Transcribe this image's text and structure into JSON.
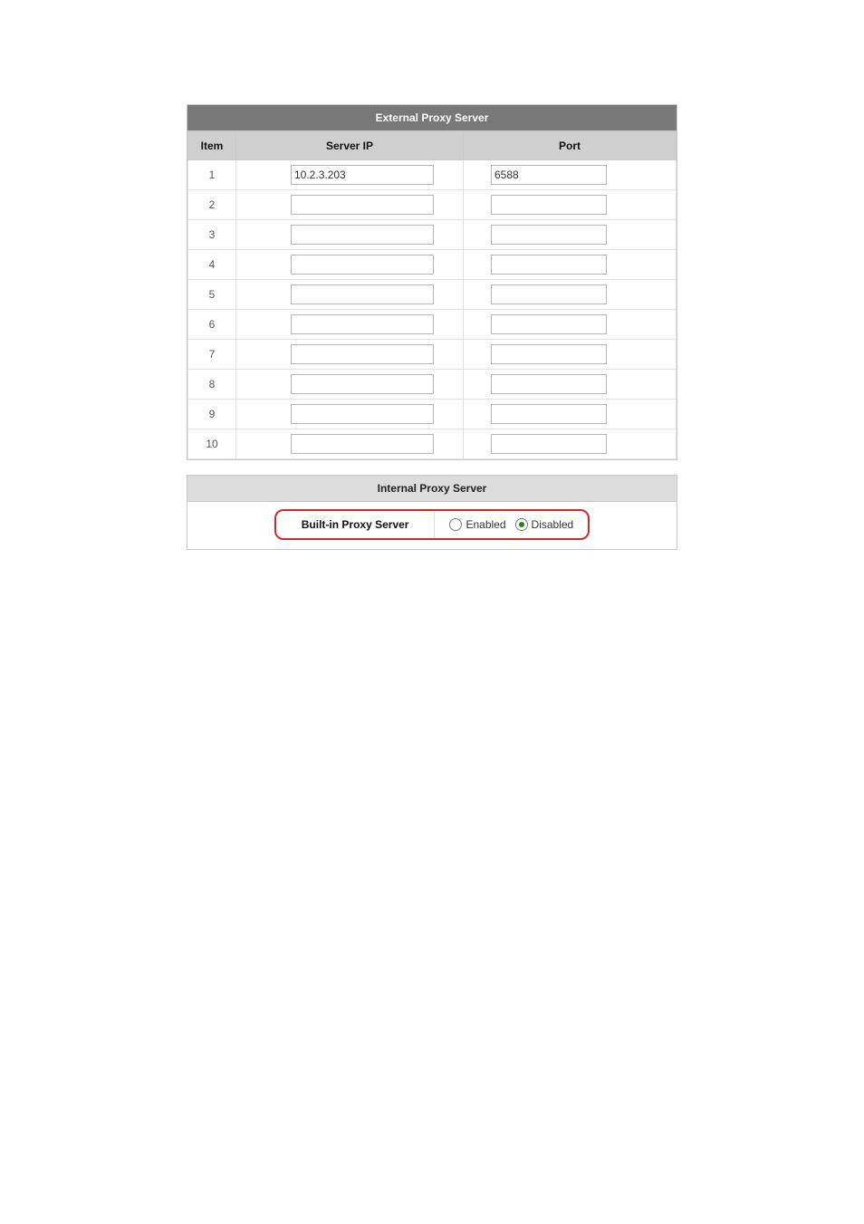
{
  "external": {
    "title": "External Proxy Server",
    "columns": {
      "item": "Item",
      "ip": "Server IP",
      "port": "Port"
    },
    "rows": [
      {
        "n": "1",
        "ip": "10.2.3.203",
        "port": "6588"
      },
      {
        "n": "2",
        "ip": "",
        "port": ""
      },
      {
        "n": "3",
        "ip": "",
        "port": ""
      },
      {
        "n": "4",
        "ip": "",
        "port": ""
      },
      {
        "n": "5",
        "ip": "",
        "port": ""
      },
      {
        "n": "6",
        "ip": "",
        "port": ""
      },
      {
        "n": "7",
        "ip": "",
        "port": ""
      },
      {
        "n": "8",
        "ip": "",
        "port": ""
      },
      {
        "n": "9",
        "ip": "",
        "port": ""
      },
      {
        "n": "10",
        "ip": "",
        "port": ""
      }
    ]
  },
  "internal": {
    "title": "Internal Proxy Server",
    "label": "Built-in Proxy Server",
    "options": {
      "enabled": "Enabled",
      "disabled": "Disabled"
    },
    "selected": "disabled"
  },
  "style": {
    "title_bg_dark": "#787878",
    "title_bg_light": "#dcdcdc",
    "header_bg": "#cfcfcf",
    "border": "#c9c9c9",
    "highlight_border": "#d02a2a",
    "radio_fill": "#3b7a1a"
  }
}
